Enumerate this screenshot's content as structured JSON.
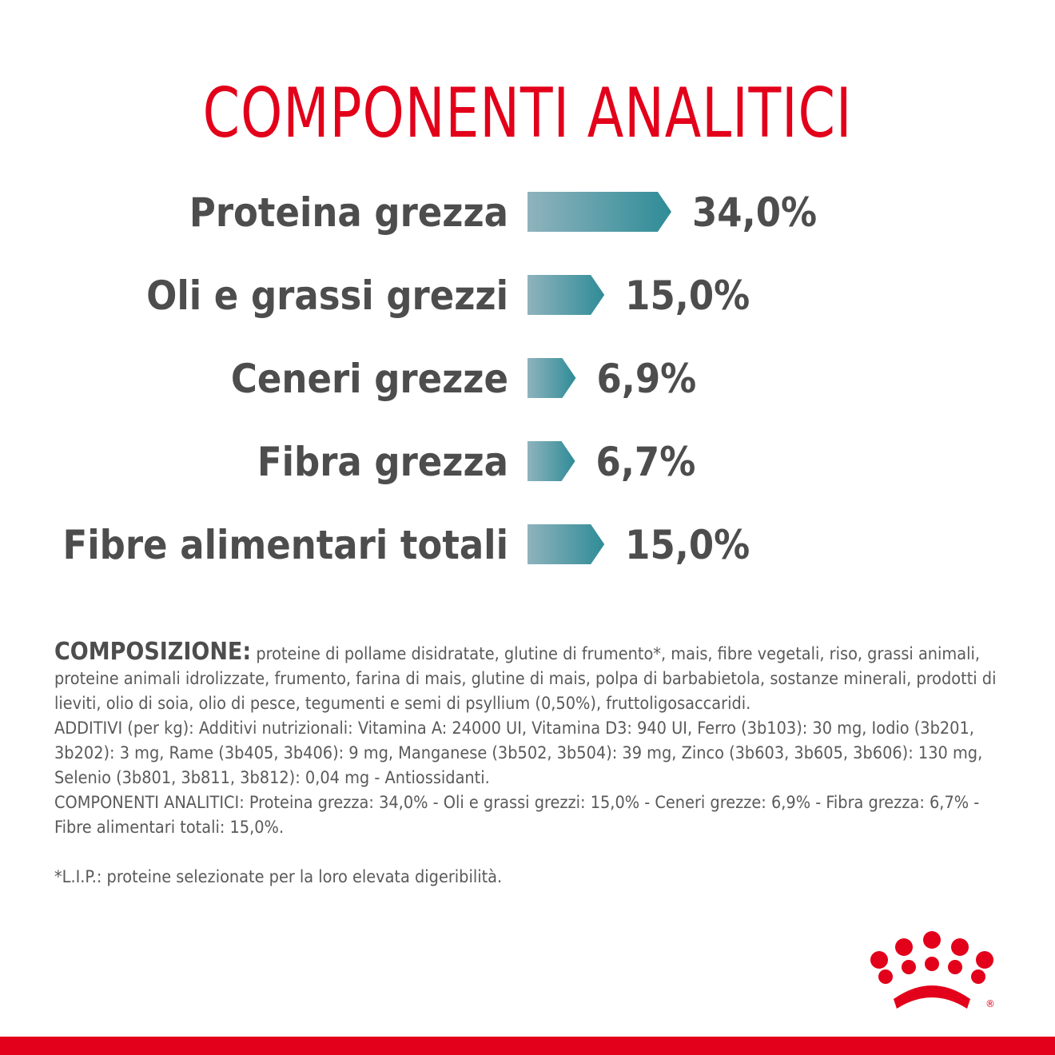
{
  "title": "COMPONENTI ANALITICI",
  "chart_data": {
    "type": "bar",
    "orientation": "horizontal",
    "categories": [
      "Proteina grezza",
      "Oli e grassi grezzi",
      "Ceneri grezze",
      "Fibra grezza",
      "Fibre alimentari totali"
    ],
    "values": [
      34.0,
      15.0,
      6.9,
      6.7,
      15.0
    ],
    "value_labels": [
      "34,0%",
      "15,0%",
      "6,9%",
      "6,7%",
      "15,0%"
    ],
    "unit": "%",
    "colors": {
      "bar_start": "#8fb3bd",
      "bar_end": "#2e8c97",
      "text": "#4d4d4d"
    },
    "grid": false,
    "legend": "none"
  },
  "composition": {
    "label": "COMPOSIZIONE:",
    "text": "proteine di pollame disidratate, glutine di frumento*, mais, fibre vegetali, riso, grassi animali, proteine animali idrolizzate, frumento, farina di mais, glutine di mais, polpa di barbabietola, sostanze minerali, prodotti di lieviti, olio di soia, olio di pesce, tegumenti e semi di psyllium (0,50%), fruttoligosaccaridi.",
    "additives": "ADDITIVI (per kg): Additivi nutrizionali: Vitamina A: 24000 UI, Vitamina D3: 940 UI, Ferro (3b103): 30 mg, Iodio (3b201, 3b202): 3 mg, Rame (3b405, 3b406): 9 mg, Manganese (3b502, 3b504): 39 mg, Zinco (3b603, 3b605, 3b606): 130 mg, Selenio (3b801, 3b811, 3b812): 0,04 mg - Antiossidanti.",
    "analytical": "COMPONENTI ANALITICI: Proteina grezza: 34,0% - Oli e grassi grezzi: 15,0% - Ceneri grezze: 6,9% - Fibra grezza: 6,7% - Fibre alimentari totali: 15,0%.",
    "footnote": "*L.I.P.: proteine selezionate per la loro elevata digeribilità."
  },
  "brand": {
    "logo": "royal-canin-crown-logo",
    "registered_mark": "®",
    "accent_color": "#e2001a"
  }
}
